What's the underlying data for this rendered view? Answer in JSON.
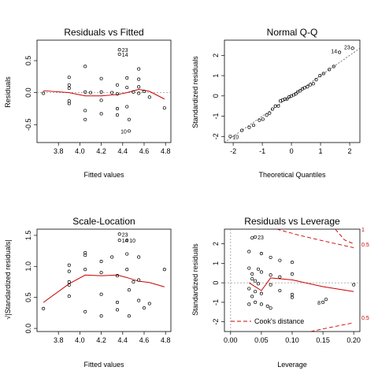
{
  "chart_data": [
    {
      "type": "scatter",
      "title": "Residuals vs Fitted",
      "xlabel": "Fitted values",
      "ylabel": "Residuals",
      "xlim": [
        3.6,
        4.85
      ],
      "ylim": [
        -0.78,
        0.82
      ],
      "xticks": [
        "3.8",
        "4.0",
        "4.2",
        "4.4",
        "4.6",
        "4.8"
      ],
      "yticks": [
        "-0.5",
        "0.0",
        "0.5"
      ],
      "reference_line": "dotted horizontal at 0",
      "points": [
        {
          "x": 3.66,
          "y": -0.01
        },
        {
          "x": 3.9,
          "y": 0.12
        },
        {
          "x": 3.9,
          "y": 0.07
        },
        {
          "x": 3.9,
          "y": -0.17
        },
        {
          "x": 3.9,
          "y": -0.13
        },
        {
          "x": 3.9,
          "y": 0.24
        },
        {
          "x": 4.05,
          "y": 0.41
        },
        {
          "x": 4.05,
          "y": 0.01
        },
        {
          "x": 4.05,
          "y": -0.28
        },
        {
          "x": 4.05,
          "y": -0.42
        },
        {
          "x": 4.1,
          "y": 0.0
        },
        {
          "x": 4.2,
          "y": 0.22
        },
        {
          "x": 4.2,
          "y": 0.01
        },
        {
          "x": 4.2,
          "y": -0.12
        },
        {
          "x": 4.2,
          "y": -0.33
        },
        {
          "x": 4.3,
          "y": 0.0
        },
        {
          "x": 4.35,
          "y": 0.12
        },
        {
          "x": 4.35,
          "y": -0.02
        },
        {
          "x": 4.35,
          "y": -0.25
        },
        {
          "x": 4.35,
          "y": -0.35
        },
        {
          "x": 4.37,
          "y": 0.67
        },
        {
          "x": 4.37,
          "y": 0.6
        },
        {
          "x": 4.44,
          "y": 0.23
        },
        {
          "x": 4.44,
          "y": 0.08
        },
        {
          "x": 4.44,
          "y": -0.22
        },
        {
          "x": 4.46,
          "y": -0.42
        },
        {
          "x": 4.46,
          "y": -0.6
        },
        {
          "x": 4.5,
          "y": 0.01
        },
        {
          "x": 4.55,
          "y": 0.37
        },
        {
          "x": 4.55,
          "y": 0.21
        },
        {
          "x": 4.55,
          "y": 0.09
        },
        {
          "x": 4.55,
          "y": -0.01
        },
        {
          "x": 4.6,
          "y": 0.02
        },
        {
          "x": 4.65,
          "y": -0.07
        },
        {
          "x": 4.79,
          "y": -0.24
        }
      ],
      "labels": [
        {
          "text": "23",
          "x": 4.37,
          "y": 0.67
        },
        {
          "text": "14",
          "x": 4.37,
          "y": 0.6
        },
        {
          "text": "10",
          "x": 4.46,
          "y": -0.6
        }
      ],
      "smooth": [
        {
          "x": 3.66,
          "y": 0.03
        },
        {
          "x": 3.9,
          "y": 0.0
        },
        {
          "x": 4.05,
          "y": -0.05
        },
        {
          "x": 4.2,
          "y": -0.05
        },
        {
          "x": 4.35,
          "y": -0.03
        },
        {
          "x": 4.44,
          "y": 0.0
        },
        {
          "x": 4.55,
          "y": 0.05
        },
        {
          "x": 4.65,
          "y": 0.02
        },
        {
          "x": 4.79,
          "y": -0.1
        }
      ]
    },
    {
      "type": "scatter",
      "title": "Normal Q-Q",
      "xlabel": "Theoretical Quantiles",
      "ylabel": "Standardized residuals",
      "xlim": [
        -2.3,
        2.35
      ],
      "ylim": [
        -2.3,
        2.75
      ],
      "xticks": [
        "-2",
        "-1",
        "0",
        "1",
        "2"
      ],
      "yticks": [
        "-2",
        "-1",
        "0",
        "1",
        "2"
      ],
      "reference_line": "dotted diagonal",
      "points": [
        {
          "x": -2.1,
          "y": -2.0
        },
        {
          "x": -1.7,
          "y": -1.7
        },
        {
          "x": -1.45,
          "y": -1.55
        },
        {
          "x": -1.3,
          "y": -1.45
        },
        {
          "x": -1.1,
          "y": -1.2
        },
        {
          "x": -0.98,
          "y": -1.15
        },
        {
          "x": -0.85,
          "y": -0.95
        },
        {
          "x": -0.75,
          "y": -0.85
        },
        {
          "x": -0.65,
          "y": -0.65
        },
        {
          "x": -0.55,
          "y": -0.5
        },
        {
          "x": -0.45,
          "y": -0.5
        },
        {
          "x": -0.38,
          "y": -0.25
        },
        {
          "x": -0.3,
          "y": -0.2
        },
        {
          "x": -0.22,
          "y": -0.15
        },
        {
          "x": -0.15,
          "y": -0.15
        },
        {
          "x": -0.08,
          "y": -0.05
        },
        {
          "x": 0.0,
          "y": 0.0
        },
        {
          "x": 0.08,
          "y": 0.05
        },
        {
          "x": 0.15,
          "y": 0.1
        },
        {
          "x": 0.22,
          "y": 0.2
        },
        {
          "x": 0.3,
          "y": 0.25
        },
        {
          "x": 0.38,
          "y": 0.35
        },
        {
          "x": 0.45,
          "y": 0.4
        },
        {
          "x": 0.55,
          "y": 0.45
        },
        {
          "x": 0.65,
          "y": 0.55
        },
        {
          "x": 0.75,
          "y": 0.6
        },
        {
          "x": 0.85,
          "y": 0.8
        },
        {
          "x": 0.98,
          "y": 1.0
        },
        {
          "x": 1.1,
          "y": 1.1
        },
        {
          "x": 1.3,
          "y": 1.3
        },
        {
          "x": 1.45,
          "y": 1.45
        },
        {
          "x": 1.65,
          "y": 2.15
        },
        {
          "x": 2.1,
          "y": 2.35
        }
      ],
      "labels": [
        {
          "text": "23",
          "x": 2.1,
          "y": 2.35
        },
        {
          "text": "14",
          "x": 1.65,
          "y": 2.15
        },
        {
          "text": "10",
          "x": -2.1,
          "y": -2.0
        }
      ]
    },
    {
      "type": "scatter",
      "title": "Scale-Location",
      "xlabel": "Fitted values",
      "ylabel": "√|Standardized residuals|",
      "xlim": [
        3.6,
        4.85
      ],
      "ylim": [
        -0.05,
        1.6
      ],
      "xticks": [
        "3.8",
        "4.0",
        "4.2",
        "4.4",
        "4.6",
        "4.8"
      ],
      "yticks": [
        "0.0",
        "0.5",
        "1.0",
        "1.5"
      ],
      "points": [
        {
          "x": 3.66,
          "y": 0.32
        },
        {
          "x": 3.9,
          "y": 1.02
        },
        {
          "x": 3.9,
          "y": 0.92
        },
        {
          "x": 3.9,
          "y": 0.75
        },
        {
          "x": 3.9,
          "y": 0.7
        },
        {
          "x": 3.9,
          "y": 0.52
        },
        {
          "x": 4.05,
          "y": 1.22
        },
        {
          "x": 4.05,
          "y": 1.18
        },
        {
          "x": 4.05,
          "y": 0.95
        },
        {
          "x": 4.05,
          "y": 0.27
        },
        {
          "x": 4.2,
          "y": 1.08
        },
        {
          "x": 4.2,
          "y": 0.9
        },
        {
          "x": 4.2,
          "y": 0.55
        },
        {
          "x": 4.2,
          "y": 0.2
        },
        {
          "x": 4.3,
          "y": 1.15
        },
        {
          "x": 4.35,
          "y": 0.85
        },
        {
          "x": 4.35,
          "y": 0.42
        },
        {
          "x": 4.35,
          "y": 0.3
        },
        {
          "x": 4.37,
          "y": 1.52
        },
        {
          "x": 4.37,
          "y": 1.42
        },
        {
          "x": 4.44,
          "y": 1.42
        },
        {
          "x": 4.44,
          "y": 1.2
        },
        {
          "x": 4.44,
          "y": 0.95
        },
        {
          "x": 4.46,
          "y": 0.62
        },
        {
          "x": 4.46,
          "y": 0.2
        },
        {
          "x": 4.5,
          "y": 0.75
        },
        {
          "x": 4.55,
          "y": 1.15
        },
        {
          "x": 4.55,
          "y": 0.78
        },
        {
          "x": 4.55,
          "y": 0.45
        },
        {
          "x": 4.6,
          "y": 0.33
        },
        {
          "x": 4.65,
          "y": 0.4
        },
        {
          "x": 4.79,
          "y": 0.95
        }
      ],
      "labels": [
        {
          "text": "23",
          "x": 4.37,
          "y": 1.52
        },
        {
          "text": "14",
          "x": 4.37,
          "y": 1.42
        },
        {
          "text": "10",
          "x": 4.44,
          "y": 1.42
        }
      ],
      "smooth": [
        {
          "x": 3.66,
          "y": 0.42
        },
        {
          "x": 3.9,
          "y": 0.72
        },
        {
          "x": 4.05,
          "y": 0.86
        },
        {
          "x": 4.2,
          "y": 0.85
        },
        {
          "x": 4.35,
          "y": 0.86
        },
        {
          "x": 4.44,
          "y": 0.82
        },
        {
          "x": 4.55,
          "y": 0.76
        },
        {
          "x": 4.65,
          "y": 0.74
        },
        {
          "x": 4.79,
          "y": 0.67
        }
      ]
    },
    {
      "type": "scatter",
      "title": "Residuals vs Leverage",
      "xlabel": "Leverage",
      "ylabel": "Standardized residuals",
      "xlim": [
        -0.01,
        0.21
      ],
      "ylim": [
        -2.5,
        2.75
      ],
      "xticks": [
        "0.00",
        "0.05",
        "0.10",
        "0.15",
        "0.20"
      ],
      "yticks": [
        "-2",
        "-1",
        "0",
        "1",
        "2"
      ],
      "reference_line": "dotted horizontal at 0 and vertical at 0",
      "points": [
        {
          "x": 0.035,
          "y": 2.3
        },
        {
          "x": 0.04,
          "y": 2.35
        },
        {
          "x": 0.03,
          "y": 1.6
        },
        {
          "x": 0.05,
          "y": 1.5
        },
        {
          "x": 0.065,
          "y": 1.3
        },
        {
          "x": 0.08,
          "y": 1.15
        },
        {
          "x": 0.1,
          "y": 1.05
        },
        {
          "x": 0.03,
          "y": 0.75
        },
        {
          "x": 0.045,
          "y": 0.7
        },
        {
          "x": 0.035,
          "y": 0.45
        },
        {
          "x": 0.05,
          "y": 0.55
        },
        {
          "x": 0.065,
          "y": 0.4
        },
        {
          "x": 0.08,
          "y": 0.3
        },
        {
          "x": 0.1,
          "y": 0.45
        },
        {
          "x": 0.035,
          "y": 0.2
        },
        {
          "x": 0.04,
          "y": 0.1
        },
        {
          "x": 0.045,
          "y": -0.05
        },
        {
          "x": 0.065,
          "y": -0.1
        },
        {
          "x": 0.03,
          "y": -0.3
        },
        {
          "x": 0.04,
          "y": -0.45
        },
        {
          "x": 0.05,
          "y": -0.55
        },
        {
          "x": 0.08,
          "y": -0.4
        },
        {
          "x": 0.1,
          "y": -0.6
        },
        {
          "x": 0.1,
          "y": -0.75
        },
        {
          "x": 0.035,
          "y": -0.7
        },
        {
          "x": 0.04,
          "y": -1.0
        },
        {
          "x": 0.05,
          "y": -1.1
        },
        {
          "x": 0.03,
          "y": -1.1
        },
        {
          "x": 0.06,
          "y": -1.2
        },
        {
          "x": 0.065,
          "y": -1.3
        },
        {
          "x": 0.155,
          "y": -0.85
        },
        {
          "x": 0.15,
          "y": -1.0
        },
        {
          "x": 0.2,
          "y": -0.1
        }
      ],
      "labels": [
        {
          "text": "23",
          "x": 0.04,
          "y": 2.35
        },
        {
          "text": "8",
          "x": 0.15,
          "y": -1.0
        }
      ],
      "smooth": [
        {
          "x": 0.03,
          "y": 0.0
        },
        {
          "x": 0.04,
          "y": -0.2
        },
        {
          "x": 0.05,
          "y": -0.4
        },
        {
          "x": 0.065,
          "y": 0.25
        },
        {
          "x": 0.1,
          "y": 0.15
        },
        {
          "x": 0.15,
          "y": -0.2
        },
        {
          "x": 0.2,
          "y": -0.45
        }
      ],
      "cooks_distance": {
        "legend": "Cook's distance",
        "contour_labels": [
          "1",
          "0.5",
          "0.5"
        ],
        "upper_1": [
          {
            "x": 0.075,
            "y": 2.75
          },
          {
            "x": 0.11,
            "y": 2.45
          },
          {
            "x": 0.15,
            "y": 2.15
          },
          {
            "x": 0.2,
            "y": 1.8
          }
        ],
        "upper_05": [
          {
            "x": 0.17,
            "y": 2.75
          },
          {
            "x": 0.185,
            "y": 2.2
          },
          {
            "x": 0.2,
            "y": 2.0
          }
        ],
        "lower_05": [
          {
            "x": 0.13,
            "y": -2.5
          },
          {
            "x": 0.16,
            "y": -2.3
          },
          {
            "x": 0.2,
            "y": -2.05
          }
        ]
      }
    }
  ]
}
